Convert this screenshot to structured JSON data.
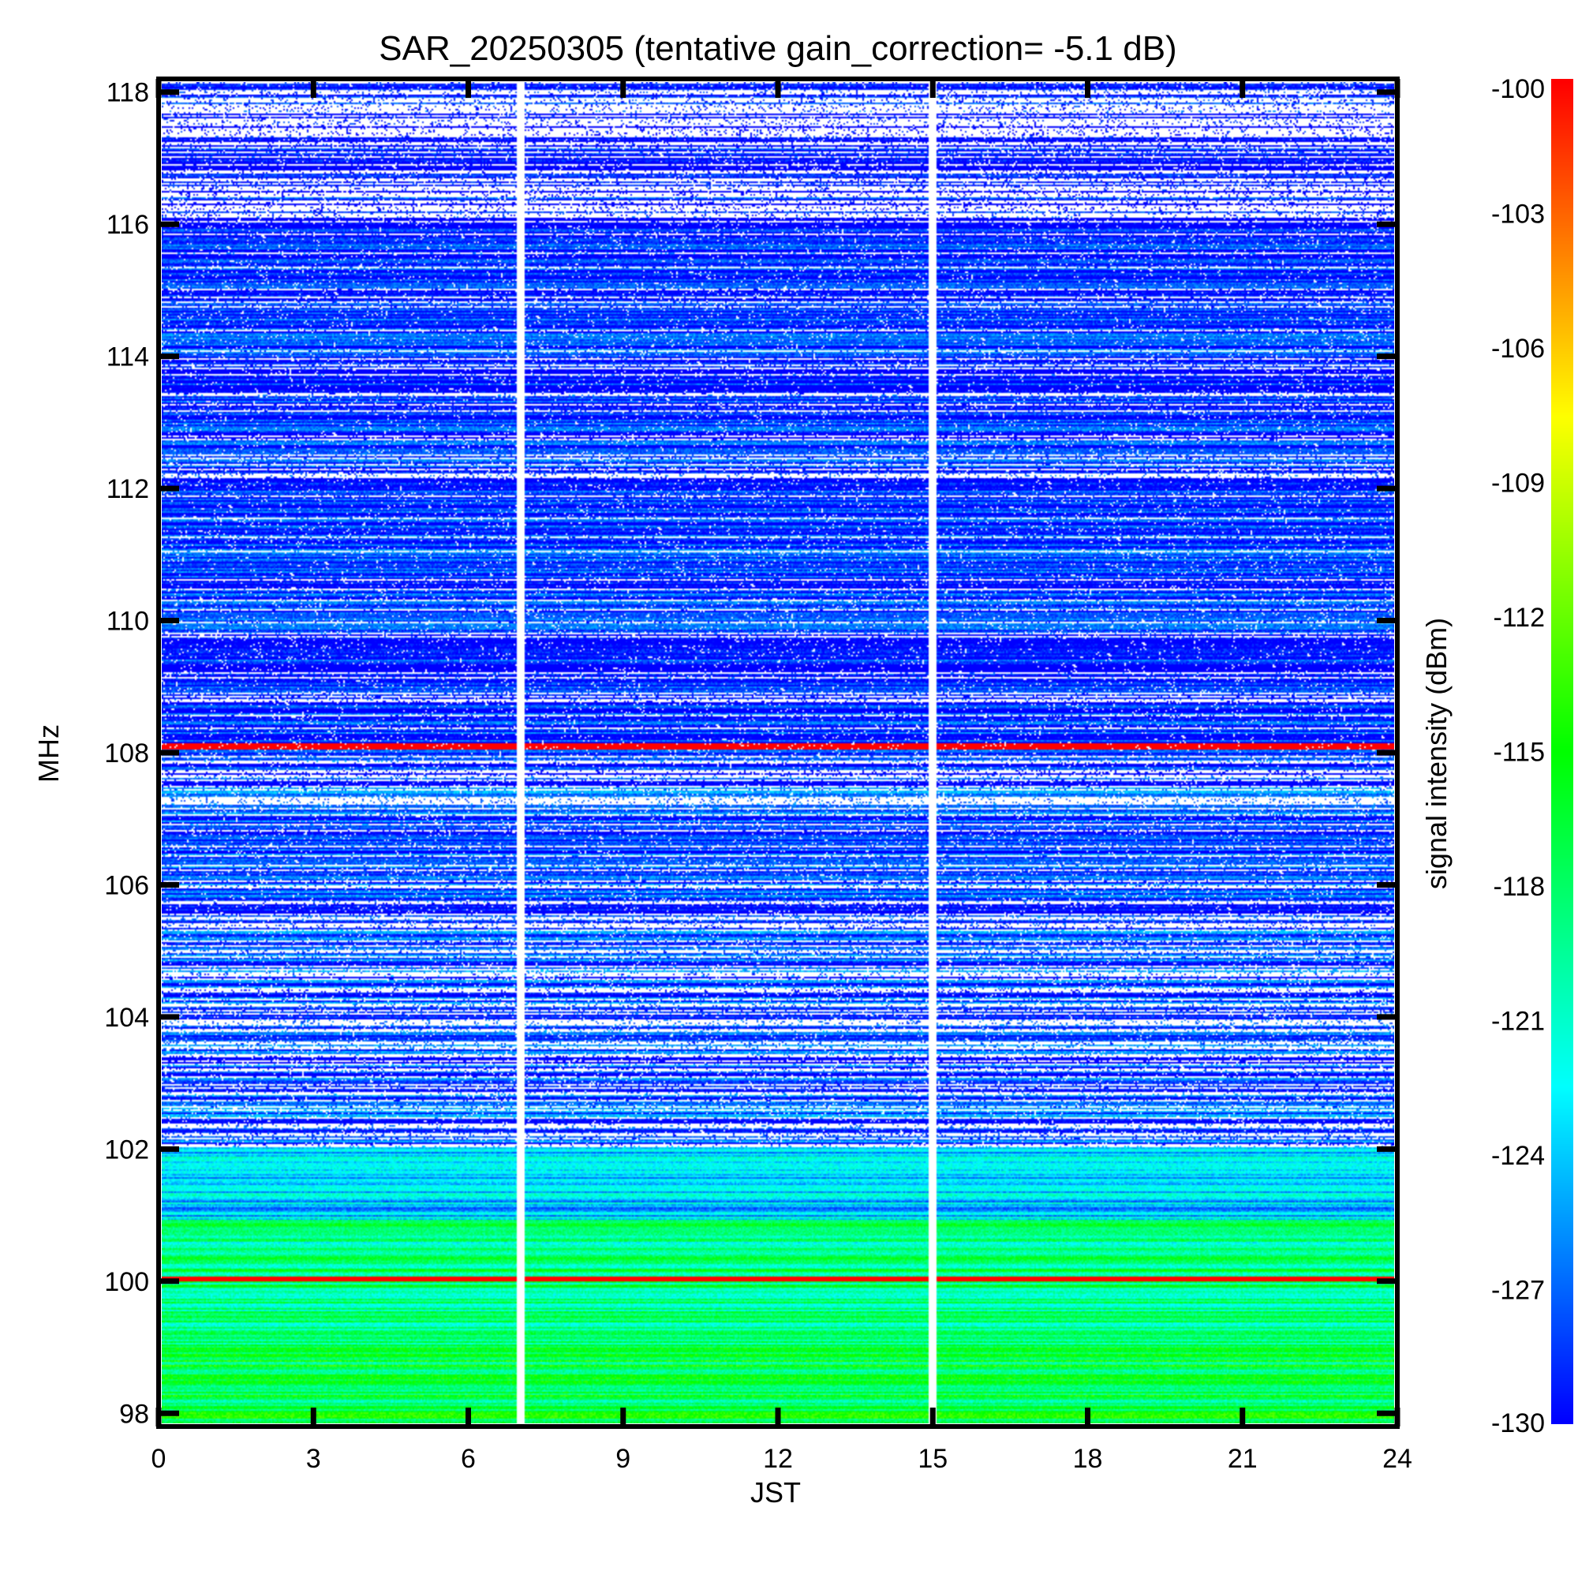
{
  "chart_data": {
    "type": "heatmap",
    "title": "SAR_20250305 (tentative gain_correction= -5.1 dB)",
    "xlabel": "JST",
    "ylabel": "MHz",
    "colorbar_label": "signal intensity (dBm)",
    "xlim": [
      0,
      24
    ],
    "ylim": [
      97.8,
      118.2
    ],
    "x_ticks": [
      0,
      3,
      6,
      9,
      12,
      15,
      18,
      21,
      24
    ],
    "y_ticks": [
      98,
      100,
      102,
      104,
      106,
      108,
      110,
      112,
      114,
      116,
      118
    ],
    "x_tick_labels": [
      "0",
      "3",
      "6",
      "9",
      "12",
      "15",
      "18",
      "21",
      "24"
    ],
    "y_tick_labels": [
      "98",
      "100",
      "102",
      "104",
      "106",
      "108",
      "110",
      "112",
      "114",
      "116",
      "118"
    ],
    "colorbar_range": [
      -130,
      -100
    ],
    "colorbar_ticks": [
      -100,
      -103,
      -106,
      -109,
      -112,
      -115,
      -118,
      -121,
      -124,
      -127,
      -130
    ],
    "colorbar_tick_labels": [
      "-100",
      "-103",
      "-106",
      "-109",
      "-112",
      "-115",
      "-118",
      "-121",
      "-124",
      "-127",
      "-130"
    ],
    "colormap": "rainbow (blue = -130 dBm, cyan, green, yellow, orange, red = -100 dBm)",
    "colormap_stops": [
      "#0000ff",
      "#00ffff",
      "#00ff00",
      "#ffff00",
      "#ff0000"
    ],
    "data_gaps_jst": [
      7.0,
      15.0
    ],
    "strong_lines": [
      {
        "freq_mhz": 108.1,
        "intensity_dbm": -100,
        "note": "red band near 108 MHz"
      },
      {
        "freq_mhz": 100.0,
        "intensity_dbm": -100,
        "note": "red band at 100 MHz"
      }
    ],
    "frequency_band_levels": [
      {
        "range_mhz": [
          97.8,
          99.0
        ],
        "typical_dbm": -117
      },
      {
        "range_mhz": [
          99.0,
          100.9
        ],
        "typical_dbm": -119
      },
      {
        "range_mhz": [
          100.9,
          102.0
        ],
        "typical_dbm": -124
      },
      {
        "range_mhz": [
          102.0,
          108.0
        ],
        "typical_dbm": -128
      },
      {
        "range_mhz": [
          108.2,
          116.0
        ],
        "typical_dbm": -129
      },
      {
        "range_mhz": [
          116.0,
          118.2
        ],
        "typical_dbm": -130
      }
    ]
  }
}
